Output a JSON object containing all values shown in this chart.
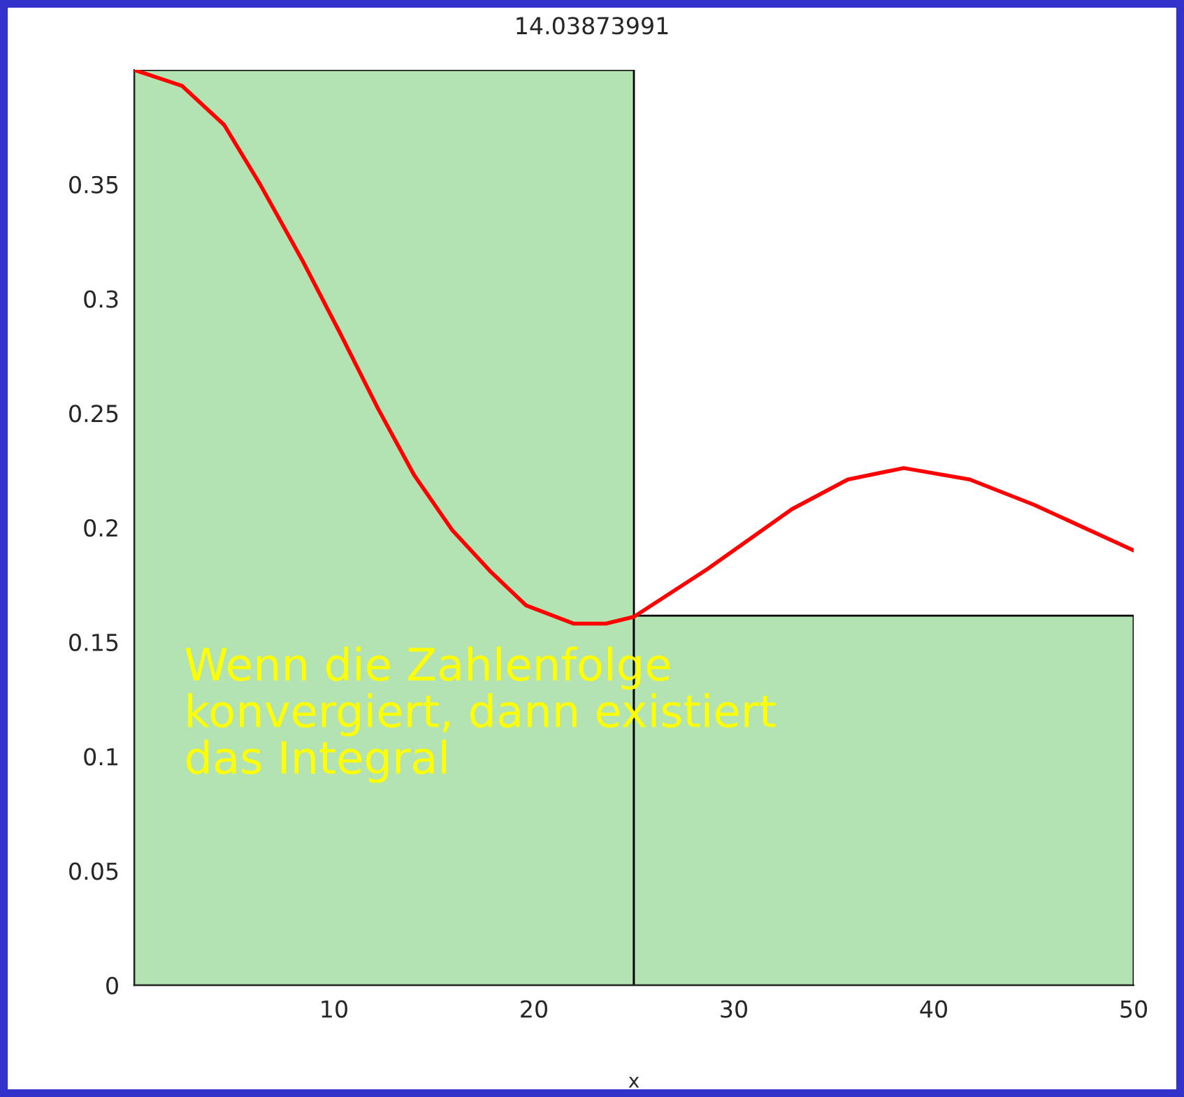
{
  "chart_data": {
    "type": "histogram",
    "title": "14.03873991",
    "xlabel": "x",
    "bins": [
      0,
      25,
      50
    ],
    "values": [
      0.4,
      0.1615
    ],
    "color": "#b3e3b3",
    "series": [
      {
        "type": "line",
        "color": "#ff0000",
        "x": [
          0,
          2.4,
          4.5,
          6.3,
          8.4,
          10.3,
          12.2,
          14.0,
          15.9,
          17.8,
          19.6,
          22.0,
          23.6,
          25.0,
          28.7,
          32.9,
          35.7,
          38.5,
          41.8,
          45.0,
          50.0
        ],
        "values": [
          0.4,
          0.393,
          0.376,
          0.35,
          0.317,
          0.285,
          0.252,
          0.223,
          0.199,
          0.181,
          0.166,
          0.158,
          0.158,
          0.161,
          0.182,
          0.208,
          0.221,
          0.226,
          0.221,
          0.21,
          0.19
        ]
      }
    ],
    "xlim": [
      0,
      50
    ],
    "xticks": [
      10,
      20,
      30,
      40,
      50
    ],
    "ylim": [
      0,
      0.4
    ],
    "yticks": [
      0,
      0.05,
      0.1,
      0.15,
      0.2,
      0.25,
      0.3,
      0.35
    ],
    "grid": false,
    "annotations": [
      "Wenn die Zahlenfolge\nkonvergiert, dann existiert\ndas Integral"
    ]
  }
}
